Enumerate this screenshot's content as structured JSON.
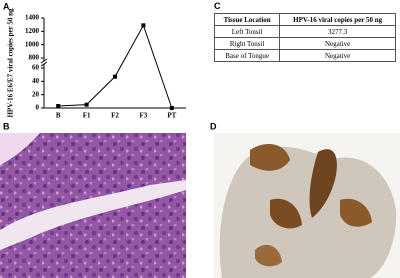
{
  "chart_data": {
    "type": "line",
    "panel_label": "A",
    "y_label": "HPV-16 E6/E7 viral copies per 50 ng",
    "categories": [
      "B",
      "F1",
      "F2",
      "F3",
      "PT"
    ],
    "values": [
      3,
      5,
      47,
      1290,
      0
    ],
    "color": "#000000",
    "ylim": [
      0,
      1400
    ],
    "ybreak": [
      60,
      800
    ],
    "yticks": [
      0,
      20,
      40,
      60,
      800,
      1000,
      1200,
      1400
    ]
  },
  "table": {
    "panel_label": "C",
    "header": [
      "Tissue Location",
      "HPV-16 viral copies per 50 ng"
    ],
    "rows": [
      [
        "Left Tonsil",
        "3277.3"
      ],
      [
        "Right Tonsil",
        "Negative"
      ],
      [
        "Base of Tongue",
        "Negative"
      ]
    ]
  },
  "panels": [
    {
      "label": "B"
    },
    {
      "label": "D"
    }
  ]
}
